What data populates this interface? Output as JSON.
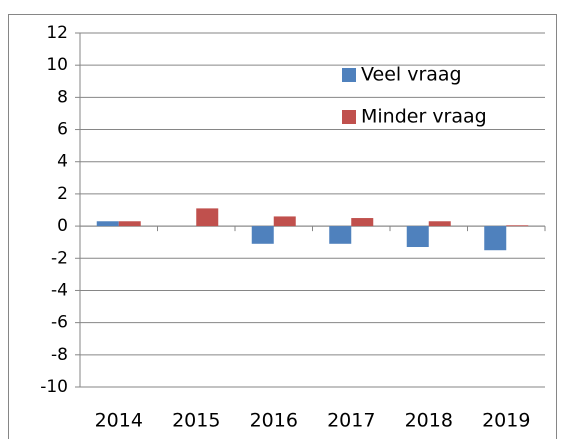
{
  "chart_data": {
    "type": "bar",
    "categories": [
      "2014",
      "2015",
      "2016",
      "2017",
      "2018",
      "2019"
    ],
    "series": [
      {
        "name": "Veel vraag",
        "color": "#4f81bd",
        "values": [
          0.3,
          0,
          -1.1,
          -1.1,
          -1.3,
          -1.5
        ]
      },
      {
        "name": "Minder vraag",
        "color": "#c0504d",
        "values": [
          0.3,
          1.1,
          0.6,
          0.5,
          0.3,
          0.05
        ]
      }
    ],
    "ylim": [
      -10,
      12
    ],
    "yticks": [
      -10,
      -8,
      -6,
      -4,
      -2,
      0,
      2,
      4,
      6,
      8,
      10,
      12
    ],
    "grid": true,
    "legend": "upper right"
  }
}
